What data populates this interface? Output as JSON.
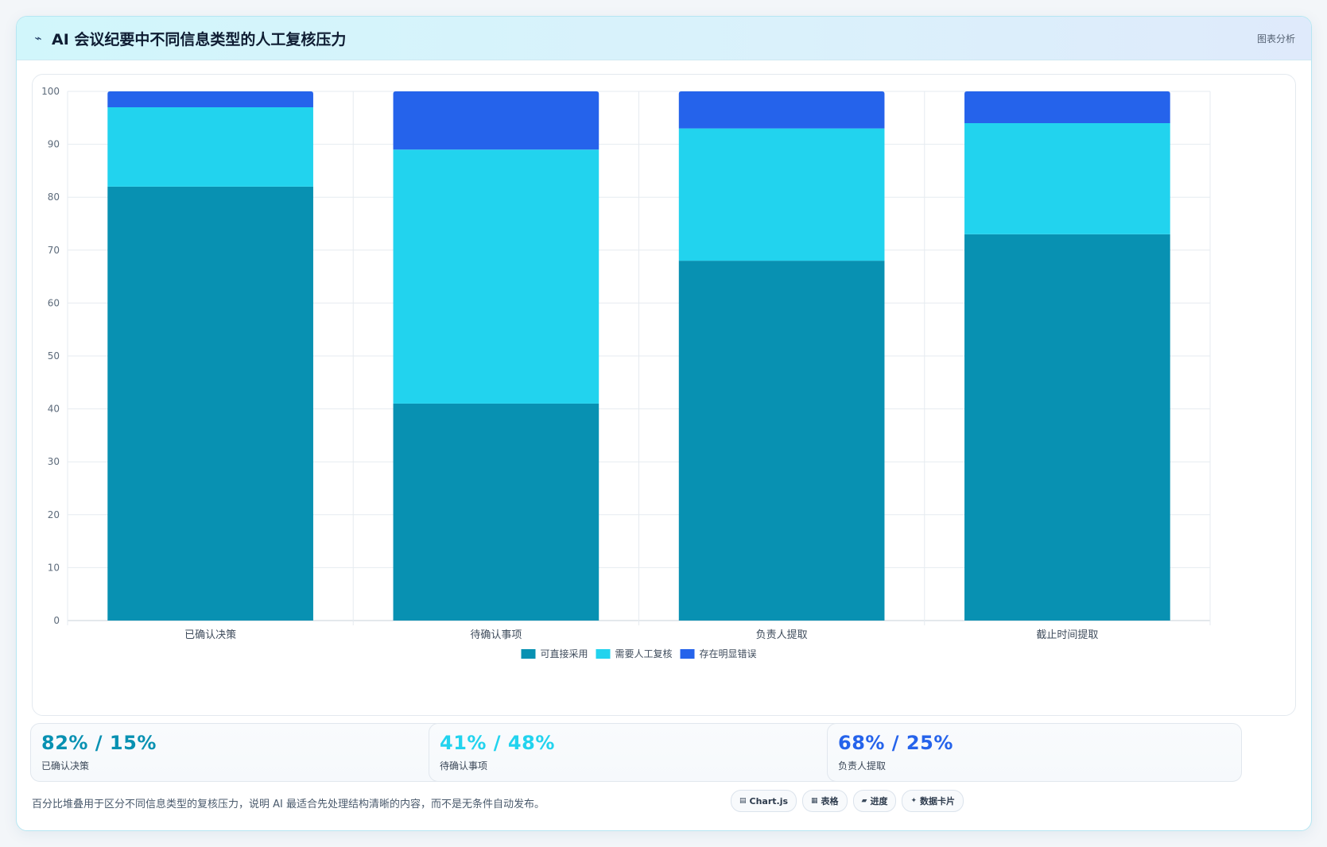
{
  "header": {
    "title_icon": "line-chart-icon",
    "title": "AI 会议纪要中不同信息类型的人工复核压力",
    "tag": "图表分析"
  },
  "chart_data": {
    "type": "bar",
    "stacked": true,
    "categories": [
      "已确认决策",
      "待确认事项",
      "负责人提取",
      "截止时间提取"
    ],
    "series": [
      {
        "name": "可直接采用",
        "values": [
          82,
          41,
          68,
          73
        ],
        "color": "#0891b2"
      },
      {
        "name": "需要人工复核",
        "values": [
          15,
          48,
          25,
          21
        ],
        "color": "#22d3ee"
      },
      {
        "name": "存在明显错误",
        "values": [
          3,
          11,
          7,
          6
        ],
        "color": "#2563eb"
      }
    ],
    "ylim": [
      0,
      100
    ],
    "yticks": [
      0,
      10,
      20,
      30,
      40,
      50,
      60,
      70,
      80,
      90,
      100
    ],
    "grid": true,
    "legend_position": "bottom"
  },
  "stats": [
    {
      "value": "82% / 15%",
      "label": "已确认决策",
      "color": "#0891b2"
    },
    {
      "value": "41% / 48%",
      "label": "待确认事项",
      "color": "#22d3ee"
    },
    {
      "value": "68% / 25%",
      "label": "负责人提取",
      "color": "#2563eb"
    }
  ],
  "footnote": "百分比堆叠用于区分不同信息类型的复核压力，说明 AI 最适合先处理结构清晰的内容，而不是无条件自动发布。",
  "badges": [
    {
      "icon": "▤",
      "icon_name": "chart-icon",
      "label": "Chart.js"
    },
    {
      "icon": "▦",
      "icon_name": "table-icon",
      "label": "表格"
    },
    {
      "icon": "▰",
      "icon_name": "progress-icon",
      "label": "进度"
    },
    {
      "icon": "✦",
      "icon_name": "sparkle-icon",
      "label": "数据卡片"
    }
  ]
}
